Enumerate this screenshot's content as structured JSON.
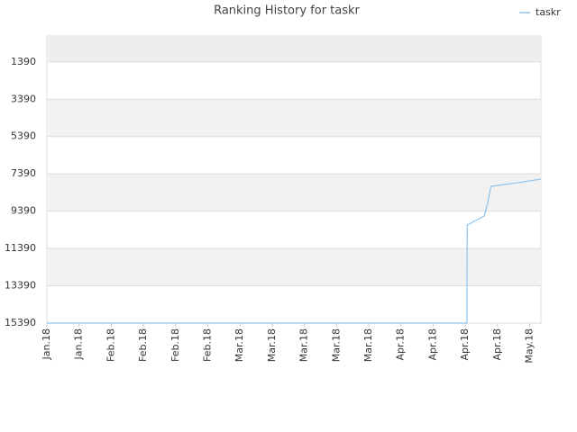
{
  "chart_data": {
    "type": "line",
    "title": "Ranking History for taskr",
    "x": [
      0,
      13.05,
      13.06,
      13.59,
      13.7,
      13.75,
      13.8,
      14.23,
      14.65,
      15.35
    ],
    "series": [
      {
        "name": "taskr",
        "color": "#8ec3ee",
        "values": [
          15390,
          15390,
          10130,
          9650,
          8920,
          8440,
          8060,
          7960,
          7860,
          7670
        ]
      }
    ],
    "xlim": [
      0,
      15.35
    ],
    "xticks": [
      {
        "value": 0,
        "label": "Jan.18"
      },
      {
        "value": 1,
        "label": "Jan.18"
      },
      {
        "value": 2,
        "label": "Feb.18"
      },
      {
        "value": 3,
        "label": "Feb.18"
      },
      {
        "value": 4,
        "label": "Feb.18"
      },
      {
        "value": 5,
        "label": "Feb.18"
      },
      {
        "value": 6,
        "label": "Mar.18"
      },
      {
        "value": 7,
        "label": "Mar.18"
      },
      {
        "value": 8,
        "label": "Mar.18"
      },
      {
        "value": 9,
        "label": "Mar.18"
      },
      {
        "value": 10,
        "label": "Mar.18"
      },
      {
        "value": 11,
        "label": "Apr.18"
      },
      {
        "value": 12,
        "label": "Apr.18"
      },
      {
        "value": 13,
        "label": "Apr.18"
      },
      {
        "value": 14,
        "label": "Apr.18"
      },
      {
        "value": 15,
        "label": "May.18"
      }
    ],
    "ylim": [
      15390,
      0
    ],
    "yticks": [
      1390,
      3390,
      5390,
      7390,
      9390,
      11390,
      13390,
      15390
    ],
    "grid": true,
    "legend": "top-right"
  }
}
